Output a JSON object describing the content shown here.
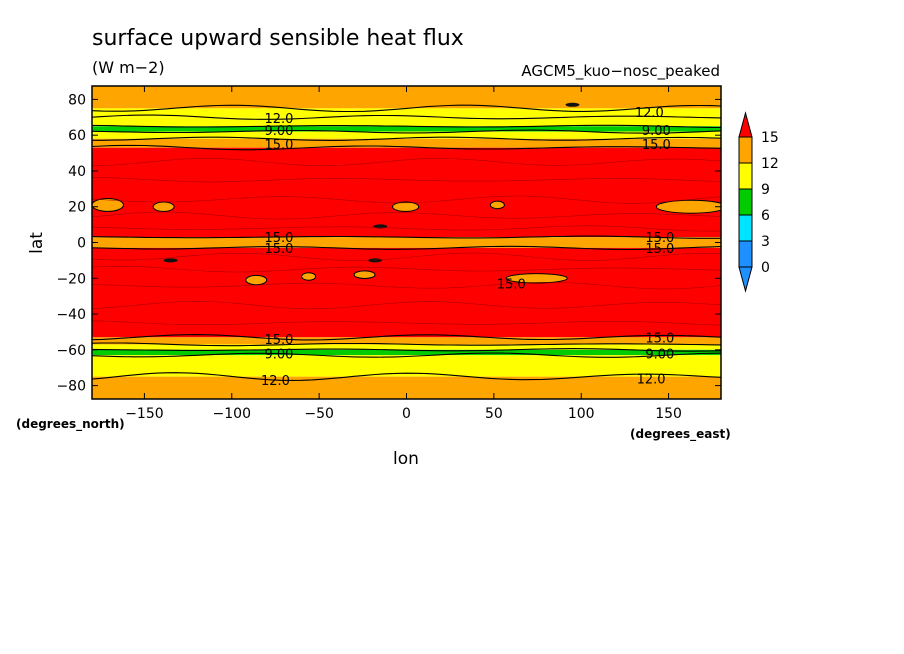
{
  "chart_data": {
    "type": "heatmap",
    "subtype": "filled-contour",
    "title": "surface upward sensible heat flux",
    "units": "(W m−2)",
    "model": "AGCM5_kuo−nosc_peaked",
    "xlabel": "lon",
    "ylabel": "lat",
    "x_units_label": "(degrees_east)",
    "y_units_label": "(degrees_north)",
    "xlim": [
      -180,
      180
    ],
    "ylim": [
      -87.5,
      87.5
    ],
    "x_ticks": [
      -150,
      -100,
      -50,
      0,
      50,
      100,
      150
    ],
    "x_tick_labels": [
      "−150",
      "−100",
      "−50",
      "0",
      "50",
      "100",
      "150"
    ],
    "y_ticks": [
      80,
      60,
      40,
      20,
      0,
      -20,
      -40,
      -60,
      -80
    ],
    "y_tick_labels": [
      "80",
      "60",
      "40",
      "20",
      "0",
      "−20",
      "−40",
      "−60",
      "−80"
    ],
    "levels": [
      0,
      3,
      6,
      9,
      12,
      15
    ],
    "level_labels": [
      "0",
      "3",
      "6",
      "9",
      "12",
      "15"
    ],
    "level_colors": [
      "#1e90ff",
      "#00e5ff",
      "#00cc00",
      "#ffff00",
      "#ffa500",
      "#ff0000"
    ],
    "under_color": "#1e90ff",
    "over_color": "#ff0000",
    "zonal_bands": [
      {
        "lat_min": 75,
        "lat_max": 87.5,
        "range": "12-15"
      },
      {
        "lat_min": 70,
        "lat_max": 75,
        "range": "9-12"
      },
      {
        "lat_min": 65,
        "lat_max": 70,
        "range": "9-12"
      },
      {
        "lat_min": 62,
        "lat_max": 65,
        "range": "6-9"
      },
      {
        "lat_min": 58,
        "lat_max": 62,
        "range": "9-12"
      },
      {
        "lat_min": 53,
        "lat_max": 58,
        "range": "12-15"
      },
      {
        "lat_min": 3,
        "lat_max": 53,
        "range": ">15"
      },
      {
        "lat_min": -3,
        "lat_max": 3,
        "range": "12-15"
      },
      {
        "lat_min": -53,
        "lat_max": -3,
        "range": ">15"
      },
      {
        "lat_min": -57,
        "lat_max": -53,
        "range": "12-15"
      },
      {
        "lat_min": -60,
        "lat_max": -57,
        "range": "9-12"
      },
      {
        "lat_min": -63,
        "lat_max": -60,
        "range": "6-9"
      },
      {
        "lat_min": -75,
        "lat_max": -63,
        "range": "9-12"
      },
      {
        "lat_min": -87.5,
        "lat_max": -75,
        "range": "12-15"
      }
    ],
    "contour_labels": [
      {
        "text": "12.0",
        "lon": -73,
        "lat": 69.5
      },
      {
        "text": "9.00",
        "lon": -73,
        "lat": 63
      },
      {
        "text": "15.0",
        "lon": -73,
        "lat": 55
      },
      {
        "text": "12.0",
        "lon": 139,
        "lat": 73
      },
      {
        "text": "9.00",
        "lon": 143,
        "lat": 63
      },
      {
        "text": "15.0",
        "lon": 143,
        "lat": 55
      },
      {
        "text": "15.0",
        "lon": -73,
        "lat": 3
      },
      {
        "text": "15.0",
        "lon": -73,
        "lat": -3
      },
      {
        "text": "15.0",
        "lon": 145,
        "lat": 3
      },
      {
        "text": "15.0",
        "lon": 145,
        "lat": -3
      },
      {
        "text": "15.0",
        "lon": 60,
        "lat": -23
      },
      {
        "text": "15.0",
        "lon": -73,
        "lat": -54
      },
      {
        "text": "15.0",
        "lon": 145,
        "lat": -53
      },
      {
        "text": "9.00",
        "lon": -73,
        "lat": -62
      },
      {
        "text": "9.00",
        "lon": 145,
        "lat": -62
      },
      {
        "text": "12.0",
        "lon": -75,
        "lat": -77
      },
      {
        "text": "12.0",
        "lon": 140,
        "lat": -76
      }
    ]
  }
}
